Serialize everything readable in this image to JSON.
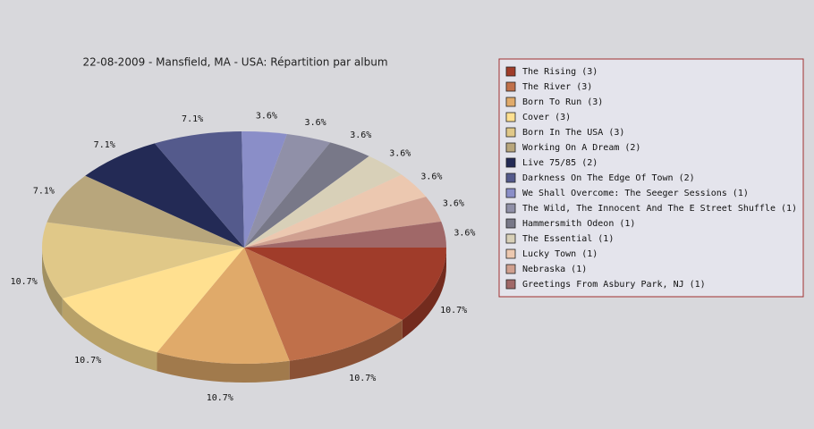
{
  "chart_data": {
    "type": "pie",
    "title": "22-08-2009 - Mansfield, MA - USA:  Répartition par album",
    "categories": [
      "The Rising (3)",
      "The River (3)",
      "Born To Run (3)",
      "Cover (3)",
      "Born In The USA (3)",
      "Working On A Dream (2)",
      "Live 75/85 (2)",
      "Darkness On The Edge Of Town (2)",
      "We Shall Overcome: The Seeger Sessions (1)",
      "The Wild, The Innocent And The E Street Shuffle (1)",
      "Hammersmith Odeon  (1)",
      "The Essential (1)",
      "Lucky Town (1)",
      "Nebraska (1)",
      "Greetings From Asbury Park, NJ (1)"
    ],
    "values": [
      10.7,
      10.7,
      10.7,
      10.7,
      10.7,
      7.1,
      7.1,
      7.1,
      3.6,
      3.6,
      3.6,
      3.6,
      3.6,
      3.6,
      3.6
    ],
    "value_labels": [
      "10.7%",
      "10.7%",
      "10.7%",
      "10.7%",
      "10.7%",
      "7.1%",
      "7.1%",
      "7.1%",
      "3.6%",
      "3.6%",
      "3.6%",
      "3.6%",
      "3.6%",
      "3.6%",
      "3.6%"
    ],
    "colors": [
      "#a03c2a",
      "#c0704a",
      "#e0aa6a",
      "#ffe090",
      "#e0c888",
      "#b8a67c",
      "#232a55",
      "#545a8c",
      "#8a8ec8",
      "#9090a8",
      "#787888",
      "#d8d0b8",
      "#ecc8b0",
      "#d0a090",
      "#a06868"
    ]
  }
}
